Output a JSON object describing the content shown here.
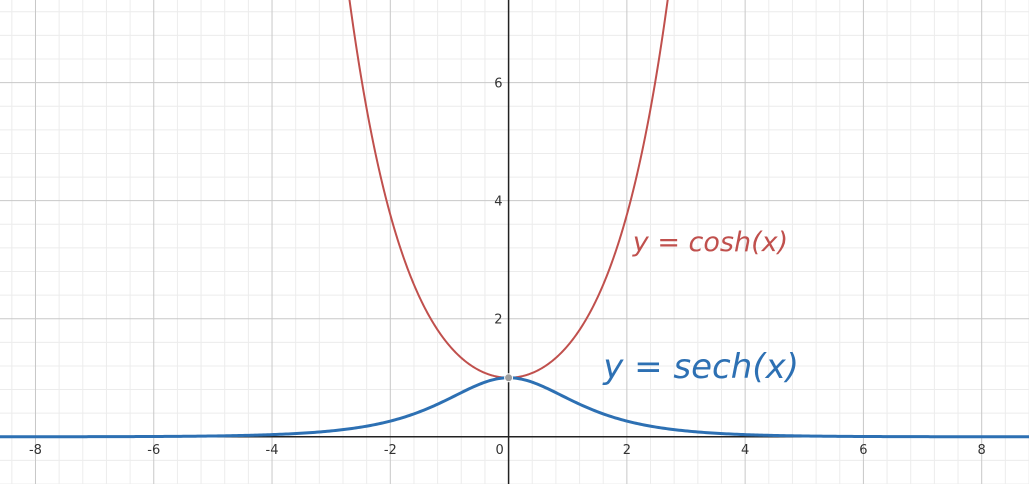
{
  "chart_data": {
    "type": "line",
    "title": "",
    "xlabel": "",
    "ylabel": "",
    "xlim": [
      -8.6,
      8.8
    ],
    "ylim": [
      -0.8,
      7.4
    ],
    "grid": true,
    "x_ticks": [
      "-8",
      "-6",
      "-4",
      "-2",
      "0",
      "2",
      "4",
      "6",
      "8"
    ],
    "y_ticks": [
      "2",
      "4",
      "6"
    ],
    "series": [
      {
        "name": "y = cosh(x)",
        "function": "cosh",
        "color": "#c0504d",
        "x_range": [
          -2.7,
          2.7
        ]
      },
      {
        "name": "y = sech(x)",
        "function": "sech",
        "color": "#2d70b3",
        "x_range": [
          -8.6,
          8.8
        ]
      }
    ],
    "annotations": [
      {
        "text": "y = cosh(x)",
        "x": 2.1,
        "y": 3.15,
        "color": "#c0504d"
      },
      {
        "text": "y = sech(x)",
        "x": 1.6,
        "y": 1.0,
        "color": "#2d70b3"
      }
    ],
    "points": [
      {
        "x": 0,
        "y": 1,
        "color": "#9e9e9e"
      }
    ]
  }
}
